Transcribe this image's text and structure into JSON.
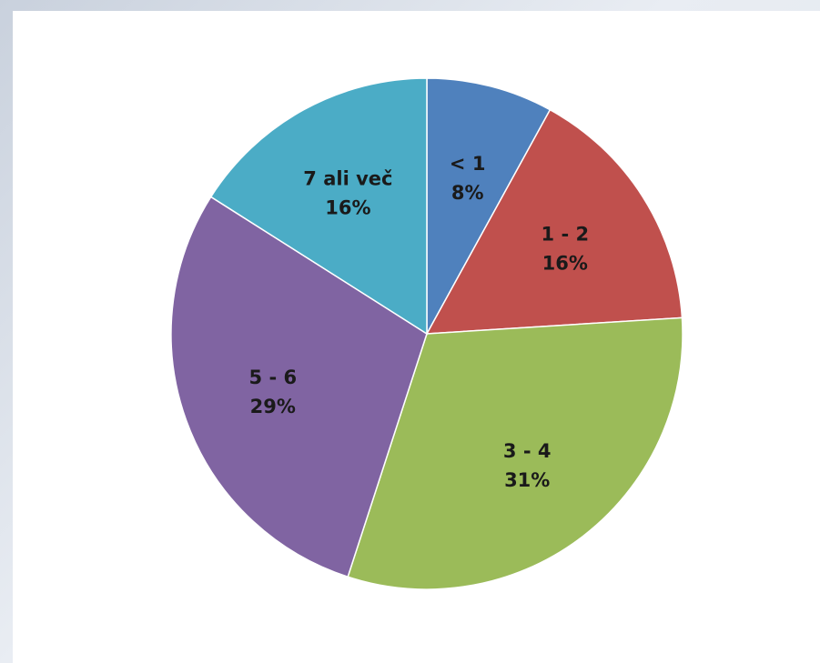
{
  "chart_data": {
    "type": "pie",
    "slices": [
      {
        "label": "< 1",
        "percent_label": "8%",
        "value": 8,
        "color": "#4f81bd"
      },
      {
        "label": "1 - 2",
        "percent_label": "16%",
        "value": 16,
        "color": "#c0504d"
      },
      {
        "label": "3 - 4",
        "percent_label": "31%",
        "value": 31,
        "color": "#9bbb59"
      },
      {
        "label": "5 - 6",
        "percent_label": "29%",
        "value": 29,
        "color": "#8064a2"
      },
      {
        "label": "7 ali več",
        "percent_label": "16%",
        "value": 16,
        "color": "#4bacc6"
      }
    ],
    "start_angle": "12 o'clock",
    "direction": "clockwise",
    "legend": "none"
  }
}
